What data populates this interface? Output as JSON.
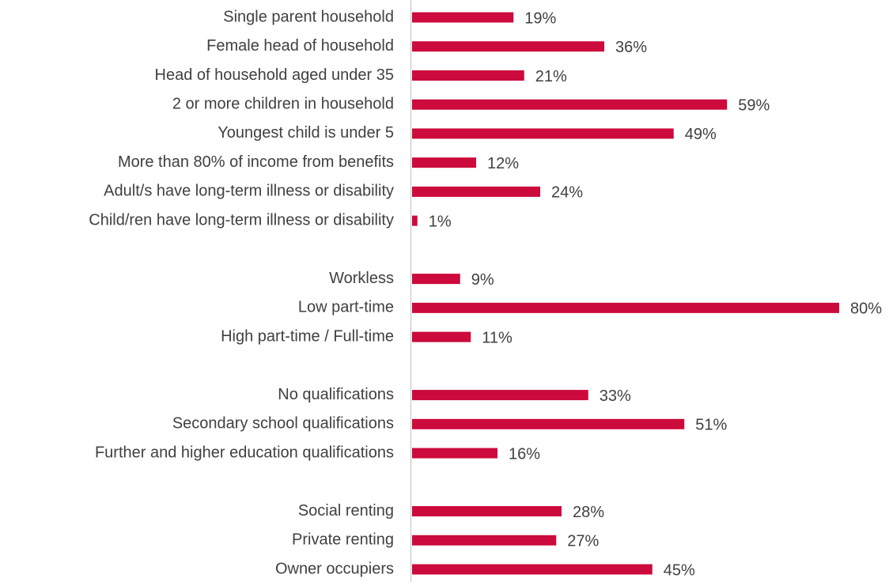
{
  "chart_data": {
    "type": "barh",
    "categories": [
      "Single parent household",
      "Female head of household",
      "Head of household aged under 35",
      "2 or more children in household",
      "Youngest child is under 5",
      "More than 80% of income from benefits",
      "Adult/s have long-term illness or disability",
      "Child/ren have long-term illness or disability",
      null,
      "Workless",
      "Low part-time",
      "High part-time / Full-time",
      null,
      "No qualifications",
      "Secondary school qualifications",
      "Further and higher education qualifications",
      null,
      "Social renting",
      "Private renting",
      "Owner occupiers"
    ],
    "values": [
      19,
      36,
      21,
      59,
      49,
      12,
      24,
      1,
      null,
      9,
      80,
      11,
      null,
      33,
      51,
      16,
      null,
      28,
      27,
      45
    ],
    "value_labels": [
      "19%",
      "36%",
      "21%",
      "59%",
      "49%",
      "12%",
      "24%",
      "1%",
      null,
      "9%",
      "80%",
      "11%",
      null,
      "33%",
      "51%",
      "16%",
      null,
      "28%",
      "27%",
      "45%"
    ],
    "color": "#cc0a3c",
    "xlim": [
      0,
      80
    ]
  }
}
